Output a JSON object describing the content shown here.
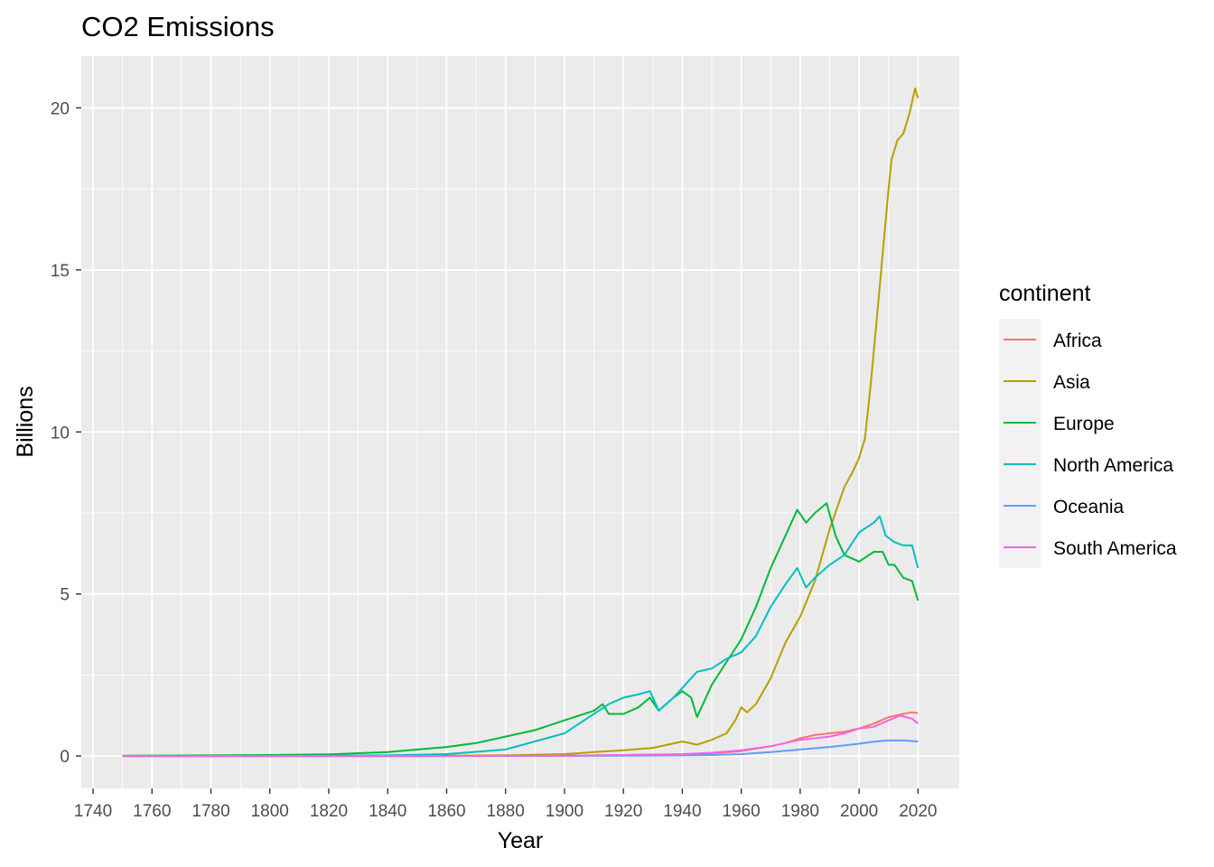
{
  "chart_data": {
    "type": "line",
    "title": "CO2 Emissions",
    "xlabel": "Year",
    "ylabel": "Billions",
    "xlim": [
      1736,
      2034
    ],
    "ylim": [
      -1.0,
      21.6
    ],
    "x_ticks": [
      1740,
      1760,
      1780,
      1800,
      1820,
      1840,
      1860,
      1880,
      1900,
      1920,
      1940,
      1960,
      1980,
      2000,
      2020
    ],
    "y_ticks": [
      0,
      5,
      10,
      15,
      20
    ],
    "legend": {
      "title": "continent",
      "position": "right"
    },
    "grid": true,
    "series": [
      {
        "name": "Africa",
        "color": "#F8766D",
        "points": [
          [
            1750,
            0
          ],
          [
            1800,
            0
          ],
          [
            1850,
            0
          ],
          [
            1880,
            0.005
          ],
          [
            1900,
            0.01
          ],
          [
            1920,
            0.03
          ],
          [
            1940,
            0.05
          ],
          [
            1950,
            0.08
          ],
          [
            1960,
            0.15
          ],
          [
            1970,
            0.3
          ],
          [
            1975,
            0.4
          ],
          [
            1980,
            0.55
          ],
          [
            1985,
            0.65
          ],
          [
            1990,
            0.7
          ],
          [
            1995,
            0.75
          ],
          [
            2000,
            0.85
          ],
          [
            2005,
            1.0
          ],
          [
            2010,
            1.2
          ],
          [
            2015,
            1.3
          ],
          [
            2018,
            1.35
          ],
          [
            2020,
            1.32
          ]
        ]
      },
      {
        "name": "Asia",
        "color": "#B79F00",
        "points": [
          [
            1750,
            0
          ],
          [
            1800,
            0
          ],
          [
            1850,
            0.01
          ],
          [
            1880,
            0.02
          ],
          [
            1900,
            0.06
          ],
          [
            1910,
            0.12
          ],
          [
            1920,
            0.18
          ],
          [
            1930,
            0.25
          ],
          [
            1935,
            0.35
          ],
          [
            1940,
            0.45
          ],
          [
            1945,
            0.35
          ],
          [
            1950,
            0.5
          ],
          [
            1955,
            0.7
          ],
          [
            1958,
            1.1
          ],
          [
            1960,
            1.5
          ],
          [
            1962,
            1.35
          ],
          [
            1965,
            1.6
          ],
          [
            1970,
            2.4
          ],
          [
            1975,
            3.5
          ],
          [
            1980,
            4.3
          ],
          [
            1985,
            5.4
          ],
          [
            1990,
            7.0
          ],
          [
            1995,
            8.3
          ],
          [
            1998,
            8.8
          ],
          [
            2000,
            9.2
          ],
          [
            2002,
            9.8
          ],
          [
            2004,
            11.5
          ],
          [
            2006,
            13.5
          ],
          [
            2008,
            15.5
          ],
          [
            2010,
            17.5
          ],
          [
            2011,
            18.4
          ],
          [
            2013,
            19.0
          ],
          [
            2015,
            19.2
          ],
          [
            2017,
            19.8
          ],
          [
            2019,
            20.6
          ],
          [
            2020,
            20.3
          ]
        ]
      },
      {
        "name": "Europe",
        "color": "#00BA38",
        "points": [
          [
            1750,
            0.01
          ],
          [
            1780,
            0.02
          ],
          [
            1800,
            0.03
          ],
          [
            1820,
            0.05
          ],
          [
            1840,
            0.12
          ],
          [
            1860,
            0.28
          ],
          [
            1870,
            0.4
          ],
          [
            1880,
            0.6
          ],
          [
            1890,
            0.8
          ],
          [
            1900,
            1.1
          ],
          [
            1910,
            1.4
          ],
          [
            1913,
            1.6
          ],
          [
            1915,
            1.3
          ],
          [
            1920,
            1.3
          ],
          [
            1925,
            1.5
          ],
          [
            1929,
            1.8
          ],
          [
            1932,
            1.4
          ],
          [
            1937,
            1.8
          ],
          [
            1940,
            2.0
          ],
          [
            1943,
            1.8
          ],
          [
            1945,
            1.2
          ],
          [
            1950,
            2.2
          ],
          [
            1955,
            2.9
          ],
          [
            1960,
            3.6
          ],
          [
            1965,
            4.6
          ],
          [
            1970,
            5.8
          ],
          [
            1975,
            6.8
          ],
          [
            1979,
            7.6
          ],
          [
            1982,
            7.2
          ],
          [
            1985,
            7.5
          ],
          [
            1989,
            7.8
          ],
          [
            1992,
            6.8
          ],
          [
            1995,
            6.2
          ],
          [
            2000,
            6.0
          ],
          [
            2005,
            6.3
          ],
          [
            2008,
            6.3
          ],
          [
            2010,
            5.9
          ],
          [
            2012,
            5.9
          ],
          [
            2015,
            5.5
          ],
          [
            2018,
            5.4
          ],
          [
            2020,
            4.8
          ]
        ]
      },
      {
        "name": "North America",
        "color": "#00BFC4",
        "points": [
          [
            1750,
            0
          ],
          [
            1800,
            0.005
          ],
          [
            1840,
            0.02
          ],
          [
            1860,
            0.06
          ],
          [
            1880,
            0.2
          ],
          [
            1900,
            0.7
          ],
          [
            1910,
            1.3
          ],
          [
            1915,
            1.6
          ],
          [
            1920,
            1.8
          ],
          [
            1925,
            1.9
          ],
          [
            1929,
            2.0
          ],
          [
            1932,
            1.4
          ],
          [
            1937,
            1.8
          ],
          [
            1940,
            2.1
          ],
          [
            1945,
            2.6
          ],
          [
            1950,
            2.7
          ],
          [
            1955,
            3.0
          ],
          [
            1960,
            3.2
          ],
          [
            1965,
            3.7
          ],
          [
            1970,
            4.6
          ],
          [
            1975,
            5.3
          ],
          [
            1979,
            5.8
          ],
          [
            1982,
            5.2
          ],
          [
            1985,
            5.5
          ],
          [
            1990,
            5.9
          ],
          [
            1995,
            6.2
          ],
          [
            2000,
            6.9
          ],
          [
            2005,
            7.2
          ],
          [
            2007,
            7.4
          ],
          [
            2009,
            6.8
          ],
          [
            2012,
            6.6
          ],
          [
            2015,
            6.5
          ],
          [
            2018,
            6.5
          ],
          [
            2020,
            5.8
          ]
        ]
      },
      {
        "name": "Oceania",
        "color": "#619CFF",
        "points": [
          [
            1750,
            0
          ],
          [
            1850,
            0
          ],
          [
            1900,
            0.005
          ],
          [
            1920,
            0.01
          ],
          [
            1940,
            0.02
          ],
          [
            1950,
            0.03
          ],
          [
            1960,
            0.06
          ],
          [
            1970,
            0.12
          ],
          [
            1980,
            0.2
          ],
          [
            1990,
            0.28
          ],
          [
            2000,
            0.38
          ],
          [
            2005,
            0.44
          ],
          [
            2010,
            0.48
          ],
          [
            2015,
            0.48
          ],
          [
            2020,
            0.45
          ]
        ]
      },
      {
        "name": "South America",
        "color": "#F564E3",
        "points": [
          [
            1750,
            0
          ],
          [
            1850,
            0
          ],
          [
            1900,
            0.01
          ],
          [
            1920,
            0.03
          ],
          [
            1940,
            0.06
          ],
          [
            1950,
            0.1
          ],
          [
            1960,
            0.18
          ],
          [
            1970,
            0.3
          ],
          [
            1980,
            0.5
          ],
          [
            1985,
            0.55
          ],
          [
            1990,
            0.6
          ],
          [
            1995,
            0.7
          ],
          [
            2000,
            0.85
          ],
          [
            2005,
            0.9
          ],
          [
            2010,
            1.1
          ],
          [
            2014,
            1.25
          ],
          [
            2016,
            1.2
          ],
          [
            2018,
            1.15
          ],
          [
            2020,
            1.0
          ]
        ]
      }
    ]
  }
}
